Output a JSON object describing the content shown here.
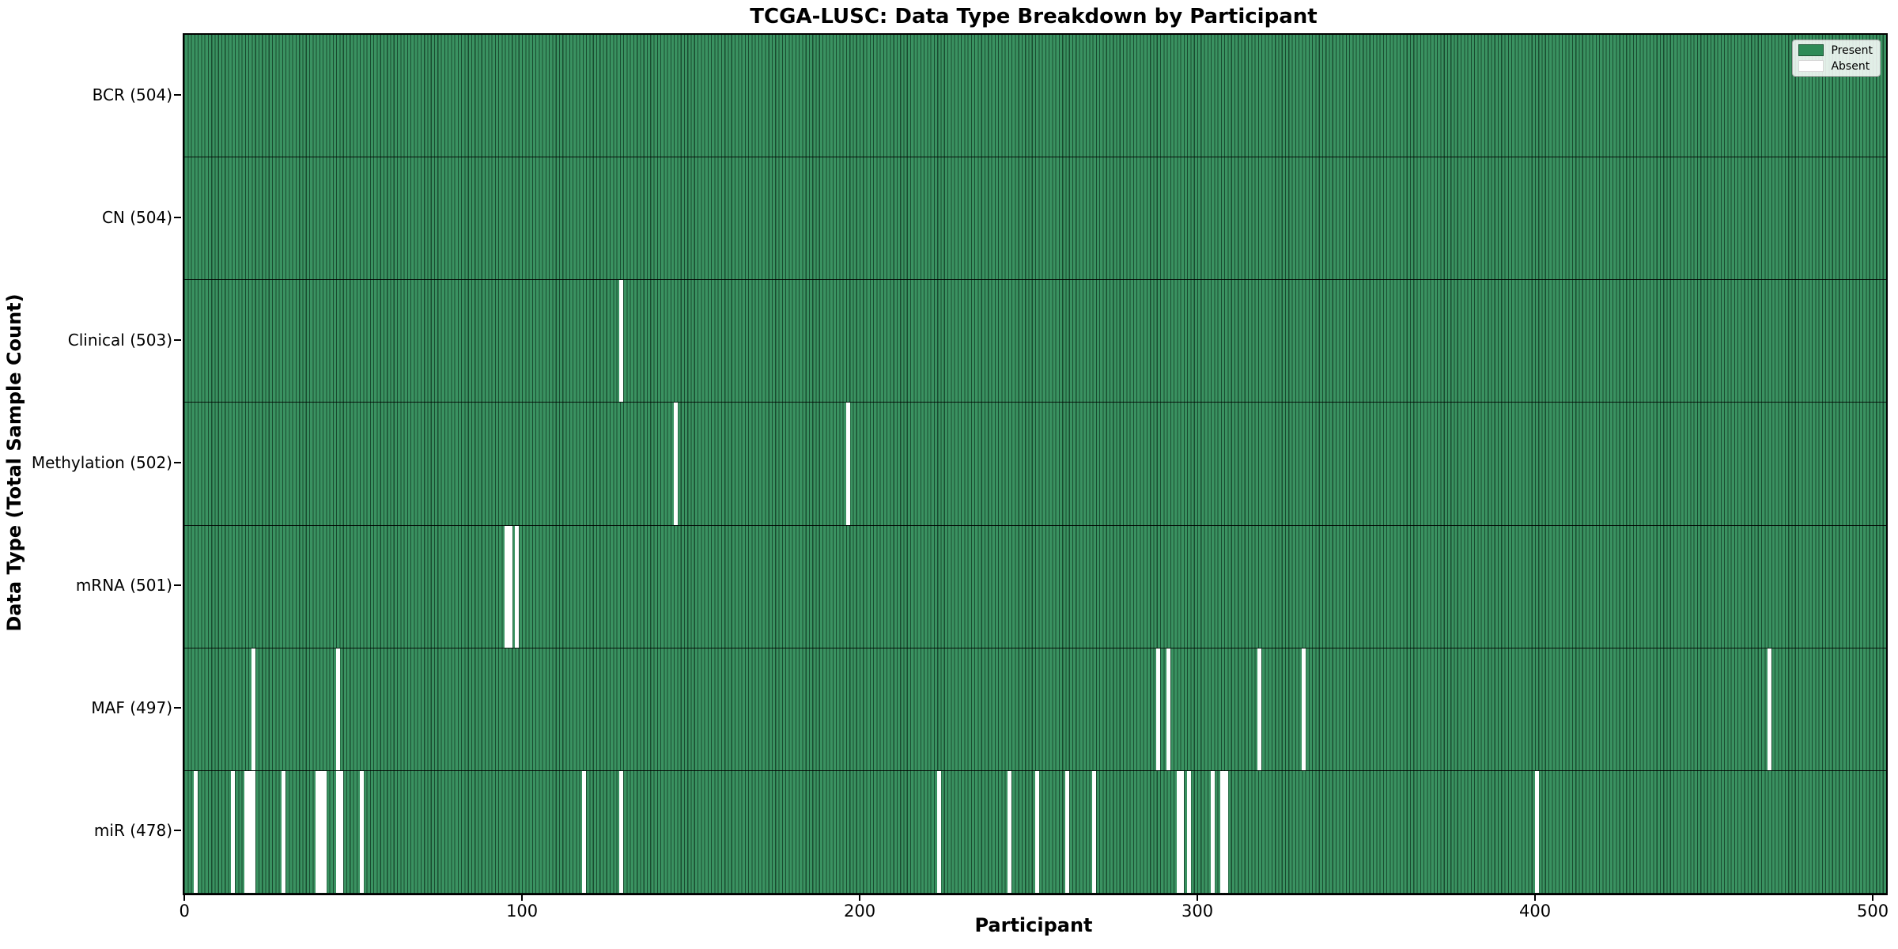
{
  "title": "TCGA-LUSC: Data Type Breakdown by Participant",
  "xlabel": "Participant",
  "ylabel": "Data Type (Total Sample Count)",
  "legend": {
    "present_label": "Present",
    "absent_label": "Absent"
  },
  "colors": {
    "present": "#2E8B57",
    "absent": "#FFFFFF",
    "bar_edge": "rgba(0,0,0,0.45)"
  },
  "chart_data": {
    "type": "heatmap",
    "title": "TCGA-LUSC: Data Type Breakdown by Participant",
    "xlabel": "Participant",
    "ylabel": "Data Type (Total Sample Count)",
    "legend_entries": [
      "Present",
      "Absent"
    ],
    "legend_position": "upper right",
    "n_participants": 504,
    "x_ticks": [
      0,
      100,
      200,
      300,
      400,
      500
    ],
    "x_range": [
      0,
      504
    ],
    "rows": [
      {
        "label": "BCR (504)",
        "data_type": "BCR",
        "total_present": 504,
        "absent_participants": []
      },
      {
        "label": "CN (504)",
        "data_type": "CN",
        "total_present": 504,
        "absent_participants": []
      },
      {
        "label": "Clinical (503)",
        "data_type": "Clinical",
        "total_present": 503,
        "absent_participants": [
          129
        ]
      },
      {
        "label": "Methylation (502)",
        "data_type": "Methylation",
        "total_present": 502,
        "absent_participants": [
          145,
          196
        ]
      },
      {
        "label": "mRNA (501)",
        "data_type": "mRNA",
        "total_present": 501,
        "absent_participants": [
          95,
          96,
          98
        ]
      },
      {
        "label": "MAF (497)",
        "data_type": "MAF",
        "total_present": 497,
        "absent_participants": [
          20,
          45,
          288,
          291,
          318,
          331,
          469
        ]
      },
      {
        "label": "miR (478)",
        "data_type": "miR",
        "total_present": 478,
        "absent_participants": [
          3,
          14,
          18,
          19,
          20,
          29,
          39,
          40,
          41,
          45,
          46,
          52,
          118,
          129,
          223,
          244,
          252,
          261,
          269,
          294,
          295,
          297,
          304,
          307,
          308,
          400
        ]
      }
    ]
  }
}
